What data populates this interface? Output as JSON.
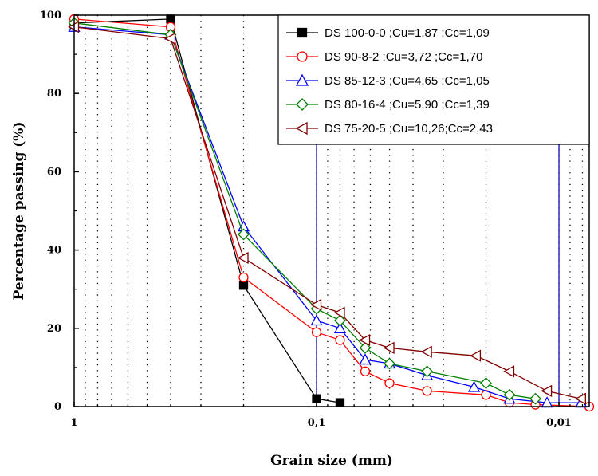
{
  "chart_data": {
    "type": "line",
    "title": "",
    "xlabel": "Grain size (mm)",
    "ylabel": "Percentage passing (%)",
    "x_scale": "log",
    "x_reversed": true,
    "xlim": [
      1,
      0.0075
    ],
    "ylim": [
      0,
      100
    ],
    "grid": "dotted vertical",
    "legend_position": "top-right",
    "x_ticks": [
      {
        "value": 1,
        "label": "1"
      },
      {
        "value": 0.1,
        "label": "0,1"
      },
      {
        "value": 0.01,
        "label": "0,01"
      }
    ],
    "y_ticks": [
      {
        "value": 0,
        "label": "0"
      },
      {
        "value": 20,
        "label": "20"
      },
      {
        "value": 40,
        "label": "40"
      },
      {
        "value": 60,
        "label": "60"
      },
      {
        "value": 80,
        "label": "80"
      },
      {
        "value": 100,
        "label": "100"
      }
    ],
    "reference_lines_x": [
      0.1,
      0.01
    ],
    "series": [
      {
        "name": "DS 100-0-0 ;Cu=1,87 ;Cc=1,09",
        "color": "#000000",
        "marker": "square-filled",
        "x": [
          1,
          0.4,
          0.2,
          0.1,
          0.08
        ],
        "y": [
          98,
          99,
          31,
          2,
          1
        ]
      },
      {
        "name": "DS 90-8-2 ;Cu=3,72 ;Cc=1,70",
        "color": "#ff0000",
        "marker": "circle",
        "x": [
          1,
          0.4,
          0.2,
          0.1,
          0.08,
          0.063,
          0.05,
          0.035,
          0.02,
          0.016,
          0.0125,
          0.0075
        ],
        "y": [
          99,
          97,
          33,
          19,
          17,
          9,
          6,
          4,
          3,
          1,
          0.5,
          0
        ]
      },
      {
        "name": "DS 85-12-3 ;Cu=4,65 ;Cc=1,05",
        "color": "#0000ff",
        "marker": "triangle-up",
        "x": [
          1,
          0.4,
          0.2,
          0.1,
          0.08,
          0.063,
          0.05,
          0.035,
          0.0224,
          0.016,
          0.0112,
          0.0081
        ],
        "y": [
          97,
          95,
          46,
          22,
          20,
          12,
          11,
          8,
          5,
          2,
          1,
          1
        ]
      },
      {
        "name": "DS 80-16-4 ;Cu=5,90 ;Cc=1,39",
        "color": "#008000",
        "marker": "diamond",
        "x": [
          1,
          0.4,
          0.2,
          0.1,
          0.08,
          0.063,
          0.05,
          0.035,
          0.02,
          0.016,
          0.0125
        ],
        "y": [
          98,
          95,
          44,
          25,
          22,
          15,
          11,
          9,
          6,
          3,
          2
        ]
      },
      {
        "name": "DS 75-20-5 ;Cu=10,26;Cc=2,43",
        "color": "#800000",
        "marker": "triangle-left",
        "x": [
          1,
          0.4,
          0.2,
          0.1,
          0.08,
          0.063,
          0.05,
          0.035,
          0.022,
          0.016,
          0.0112,
          0.0081
        ],
        "y": [
          97,
          94,
          38,
          26,
          24,
          17,
          15,
          14,
          13,
          9,
          4,
          2
        ]
      }
    ]
  }
}
